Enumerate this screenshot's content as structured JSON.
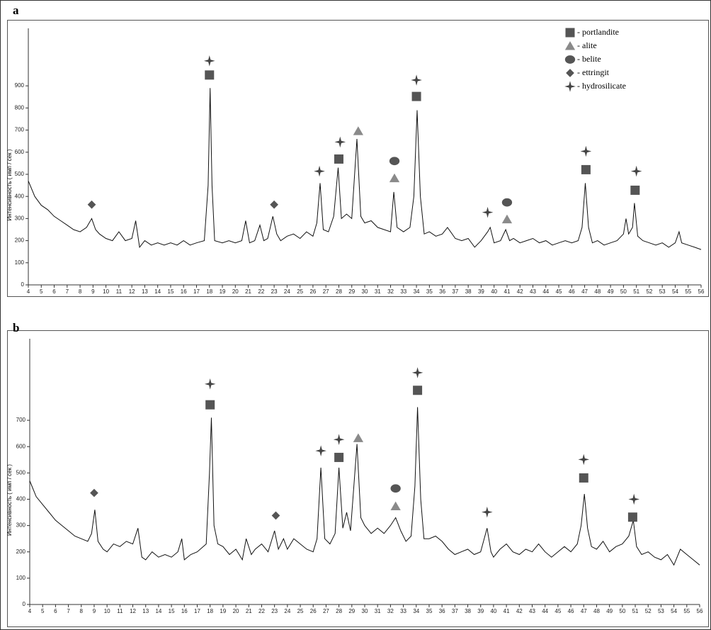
{
  "chart_data": [
    {
      "type": "line",
      "label": "a",
      "ylabel": "Интенсивность ( имп / сек )",
      "color": "#111111",
      "xlim": [
        4,
        56
      ],
      "ylim": [
        0,
        1160
      ],
      "xticks": [
        4,
        5,
        6,
        7,
        8,
        9,
        10,
        11,
        12,
        13,
        14,
        15,
        16,
        17,
        18,
        19,
        20,
        21,
        22,
        23,
        24,
        25,
        26,
        27,
        28,
        29,
        30,
        31,
        32,
        33,
        34,
        35,
        36,
        37,
        38,
        39,
        40,
        41,
        42,
        43,
        44,
        45,
        46,
        47,
        48,
        49,
        50,
        51,
        52,
        53,
        54,
        55,
        56
      ],
      "yticks": [
        0,
        100,
        200,
        300,
        400,
        500,
        600,
        700,
        800,
        900
      ],
      "x": [
        4,
        4.5,
        5,
        5.5,
        6,
        6.5,
        7,
        7.5,
        8,
        8.5,
        8.9,
        9.2,
        9.5,
        10,
        10.5,
        11,
        11.5,
        12,
        12.3,
        12.6,
        13,
        13.5,
        14,
        14.5,
        15,
        15.5,
        16,
        16.5,
        17,
        17.6,
        17.9,
        18.05,
        18.2,
        18.4,
        19,
        19.5,
        20,
        20.5,
        20.8,
        21.1,
        21.5,
        21.9,
        22.2,
        22.5,
        22.9,
        23.2,
        23.5,
        24,
        24.5,
        25,
        25.5,
        26,
        26.3,
        26.55,
        26.8,
        27.2,
        27.6,
        27.95,
        28.2,
        28.6,
        29,
        29.4,
        29.7,
        30,
        30.5,
        31,
        31.5,
        32,
        32.25,
        32.5,
        33,
        33.5,
        33.8,
        34.05,
        34.3,
        34.6,
        35,
        35.5,
        36,
        36.4,
        37,
        37.5,
        38,
        38.5,
        39,
        39.5,
        39.7,
        40,
        40.5,
        40.9,
        41.2,
        41.5,
        42,
        42.5,
        43,
        43.5,
        44,
        44.5,
        45,
        45.5,
        46,
        46.5,
        46.8,
        47.05,
        47.3,
        47.6,
        48,
        48.5,
        49,
        49.5,
        50,
        50.2,
        50.4,
        50.7,
        50.85,
        51.1,
        51.5,
        52,
        52.5,
        53,
        53.5,
        54,
        54.3,
        54.5,
        55,
        55.5,
        56
      ],
      "values": [
        470,
        400,
        360,
        340,
        310,
        290,
        270,
        250,
        240,
        260,
        300,
        250,
        230,
        210,
        200,
        240,
        200,
        210,
        290,
        170,
        200,
        180,
        190,
        180,
        190,
        180,
        200,
        180,
        190,
        200,
        450,
        890,
        450,
        200,
        190,
        200,
        190,
        200,
        290,
        190,
        200,
        270,
        200,
        210,
        310,
        230,
        200,
        220,
        230,
        210,
        240,
        220,
        280,
        460,
        250,
        240,
        310,
        530,
        300,
        320,
        300,
        660,
        310,
        280,
        290,
        260,
        250,
        240,
        420,
        260,
        240,
        260,
        400,
        790,
        400,
        230,
        240,
        220,
        230,
        260,
        210,
        200,
        210,
        170,
        200,
        240,
        260,
        190,
        200,
        250,
        200,
        210,
        190,
        200,
        210,
        190,
        200,
        180,
        190,
        200,
        190,
        200,
        260,
        460,
        260,
        190,
        200,
        180,
        190,
        200,
        230,
        300,
        230,
        260,
        370,
        220,
        200,
        190,
        180,
        190,
        170,
        190,
        240,
        190,
        180,
        170,
        160
      ],
      "legend": [
        {
          "name": "- portlandite",
          "shape": "square",
          "color": "#555555"
        },
        {
          "name": "- alite",
          "shape": "triangle",
          "color": "#8a8a8a"
        },
        {
          "name": "- belite",
          "shape": "circle",
          "color": "#555555"
        },
        {
          "name": "- ettringit",
          "shape": "diamond",
          "color": "#555555"
        },
        {
          "name": "- hydrosilicate",
          "shape": "star",
          "color": "#444444"
        }
      ],
      "markers": [
        {
          "shape": "star",
          "x": 18,
          "y": 1013
        },
        {
          "shape": "square",
          "x": 18,
          "y": 949
        },
        {
          "shape": "diamond",
          "x": 8.9,
          "y": 363
        },
        {
          "shape": "diamond",
          "x": 23,
          "y": 363
        },
        {
          "shape": "star",
          "x": 26.5,
          "y": 514
        },
        {
          "shape": "star",
          "x": 28.1,
          "y": 646
        },
        {
          "shape": "square",
          "x": 28,
          "y": 569
        },
        {
          "shape": "triangle",
          "x": 29.5,
          "y": 695
        },
        {
          "shape": "circle",
          "x": 32.3,
          "y": 560
        },
        {
          "shape": "triangle",
          "x": 32.3,
          "y": 482
        },
        {
          "shape": "star",
          "x": 34,
          "y": 926
        },
        {
          "shape": "square",
          "x": 34,
          "y": 852
        },
        {
          "shape": "star",
          "x": 39.5,
          "y": 328
        },
        {
          "shape": "circle",
          "x": 41,
          "y": 373
        },
        {
          "shape": "triangle",
          "x": 41,
          "y": 296
        },
        {
          "shape": "star",
          "x": 47.1,
          "y": 604
        },
        {
          "shape": "square",
          "x": 47.1,
          "y": 521
        },
        {
          "shape": "star",
          "x": 51,
          "y": 514
        },
        {
          "shape": "square",
          "x": 50.9,
          "y": 428
        }
      ]
    },
    {
      "type": "line",
      "label": "b",
      "ylabel": "Интенсивность ( имп / сек )",
      "color": "#111111",
      "xlim": [
        4,
        56
      ],
      "ylim": [
        0,
        1010
      ],
      "xticks": [
        4,
        5,
        6,
        7,
        8,
        9,
        10,
        11,
        12,
        13,
        14,
        15,
        16,
        17,
        18,
        19,
        20,
        21,
        22,
        23,
        24,
        25,
        26,
        27,
        28,
        29,
        30,
        31,
        32,
        33,
        34,
        35,
        36,
        37,
        38,
        39,
        40,
        41,
        42,
        43,
        44,
        45,
        46,
        47,
        48,
        49,
        50,
        51,
        52,
        53,
        54,
        55,
        56
      ],
      "yticks": [
        0,
        100,
        200,
        300,
        400,
        500,
        600,
        700
      ],
      "x": [
        4,
        4.5,
        5,
        5.5,
        6,
        6.5,
        7,
        7.5,
        8,
        8.5,
        8.8,
        9.05,
        9.3,
        9.7,
        10,
        10.5,
        11,
        11.5,
        12,
        12.4,
        12.7,
        13,
        13.5,
        14,
        14.5,
        15,
        15.5,
        15.8,
        16,
        16.5,
        17,
        17.7,
        17.95,
        18.1,
        18.3,
        18.6,
        19,
        19.5,
        20,
        20.5,
        20.8,
        21.2,
        21.5,
        22,
        22.5,
        23,
        23.3,
        23.7,
        24,
        24.5,
        25,
        25.5,
        26,
        26.3,
        26.6,
        26.9,
        27.3,
        27.7,
        28,
        28.3,
        28.6,
        28.9,
        29.4,
        29.7,
        30,
        30.5,
        31,
        31.5,
        32,
        32.4,
        32.8,
        33.2,
        33.6,
        33.9,
        34.1,
        34.35,
        34.6,
        35,
        35.5,
        36,
        36.5,
        37,
        37.5,
        38,
        38.5,
        39,
        39.5,
        39.8,
        40,
        40.5,
        41,
        41.5,
        42,
        42.5,
        43,
        43.5,
        44,
        44.5,
        45,
        45.5,
        46,
        46.5,
        46.8,
        47.05,
        47.3,
        47.6,
        48,
        48.5,
        49,
        49.5,
        50,
        50.5,
        50.85,
        51.1,
        51.5,
        52,
        52.5,
        53,
        53.5,
        54,
        54.5,
        55,
        55.5,
        56
      ],
      "values": [
        470,
        410,
        380,
        350,
        320,
        300,
        280,
        260,
        250,
        240,
        270,
        360,
        240,
        210,
        200,
        230,
        220,
        240,
        230,
        290,
        180,
        170,
        200,
        180,
        190,
        180,
        200,
        250,
        170,
        190,
        200,
        230,
        500,
        710,
        300,
        230,
        220,
        190,
        210,
        170,
        250,
        190,
        210,
        230,
        200,
        280,
        210,
        250,
        210,
        250,
        230,
        210,
        200,
        250,
        520,
        250,
        230,
        270,
        520,
        290,
        350,
        280,
        610,
        330,
        300,
        270,
        290,
        270,
        300,
        330,
        280,
        240,
        260,
        450,
        750,
        400,
        250,
        250,
        260,
        240,
        210,
        190,
        200,
        210,
        190,
        200,
        290,
        200,
        180,
        210,
        230,
        200,
        190,
        210,
        200,
        230,
        200,
        180,
        200,
        220,
        200,
        230,
        300,
        420,
        290,
        220,
        210,
        240,
        200,
        220,
        230,
        260,
        320,
        220,
        190,
        200,
        180,
        170,
        190,
        150,
        210,
        190,
        170,
        150
      ],
      "markers": [
        {
          "shape": "star",
          "x": 18,
          "y": 838
        },
        {
          "shape": "square",
          "x": 18,
          "y": 759
        },
        {
          "shape": "diamond",
          "x": 9,
          "y": 424
        },
        {
          "shape": "diamond",
          "x": 23.1,
          "y": 338
        },
        {
          "shape": "star",
          "x": 26.6,
          "y": 584
        },
        {
          "shape": "star",
          "x": 28,
          "y": 627
        },
        {
          "shape": "square",
          "x": 28,
          "y": 559
        },
        {
          "shape": "triangle",
          "x": 29.5,
          "y": 632
        },
        {
          "shape": "circle",
          "x": 32.4,
          "y": 441
        },
        {
          "shape": "triangle",
          "x": 32.4,
          "y": 373
        },
        {
          "shape": "star",
          "x": 34.1,
          "y": 881
        },
        {
          "shape": "square",
          "x": 34.1,
          "y": 814
        },
        {
          "shape": "star",
          "x": 39.5,
          "y": 351
        },
        {
          "shape": "star",
          "x": 47,
          "y": 551
        },
        {
          "shape": "square",
          "x": 47,
          "y": 481
        },
        {
          "shape": "star",
          "x": 50.9,
          "y": 400
        },
        {
          "shape": "square",
          "x": 50.8,
          "y": 332
        }
      ]
    }
  ]
}
